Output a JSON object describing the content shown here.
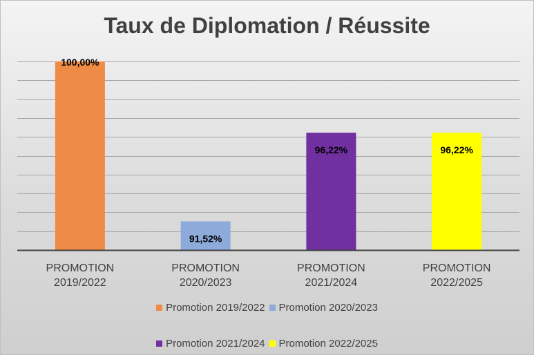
{
  "chart_data": {
    "type": "bar",
    "title": "Taux de Diplomation / Réussite",
    "categories": [
      "PROMOTION 2019/2022",
      "PROMOTION 2020/2023",
      "PROMOTION 2021/2024",
      "PROMOTION 2022/2025"
    ],
    "category_lines": [
      [
        "PROMOTION",
        "2019/2022"
      ],
      [
        "PROMOTION",
        "2020/2023"
      ],
      [
        "PROMOTION",
        "2021/2024"
      ],
      [
        "PROMOTION",
        "2022/2025"
      ]
    ],
    "series": [
      {
        "name": "Promotion 2019/2022",
        "values": [
          100.0,
          null,
          null,
          null
        ],
        "label": "100,00%",
        "color": "#ed8b47"
      },
      {
        "name": "Promotion 2020/2023",
        "values": [
          null,
          91.52,
          null,
          null
        ],
        "label": "91,52%",
        "color": "#8eaadb"
      },
      {
        "name": "Promotion 2021/2024",
        "values": [
          null,
          null,
          96.22,
          null
        ],
        "label": "96,22%",
        "color": "#7030a0"
      },
      {
        "name": "Promotion 2022/2025",
        "values": [
          null,
          null,
          null,
          96.22
        ],
        "label": "96,22%",
        "color": "#ffff00"
      }
    ],
    "ylim": [
      90,
      100
    ],
    "grid": true,
    "legend_position": "bottom"
  }
}
